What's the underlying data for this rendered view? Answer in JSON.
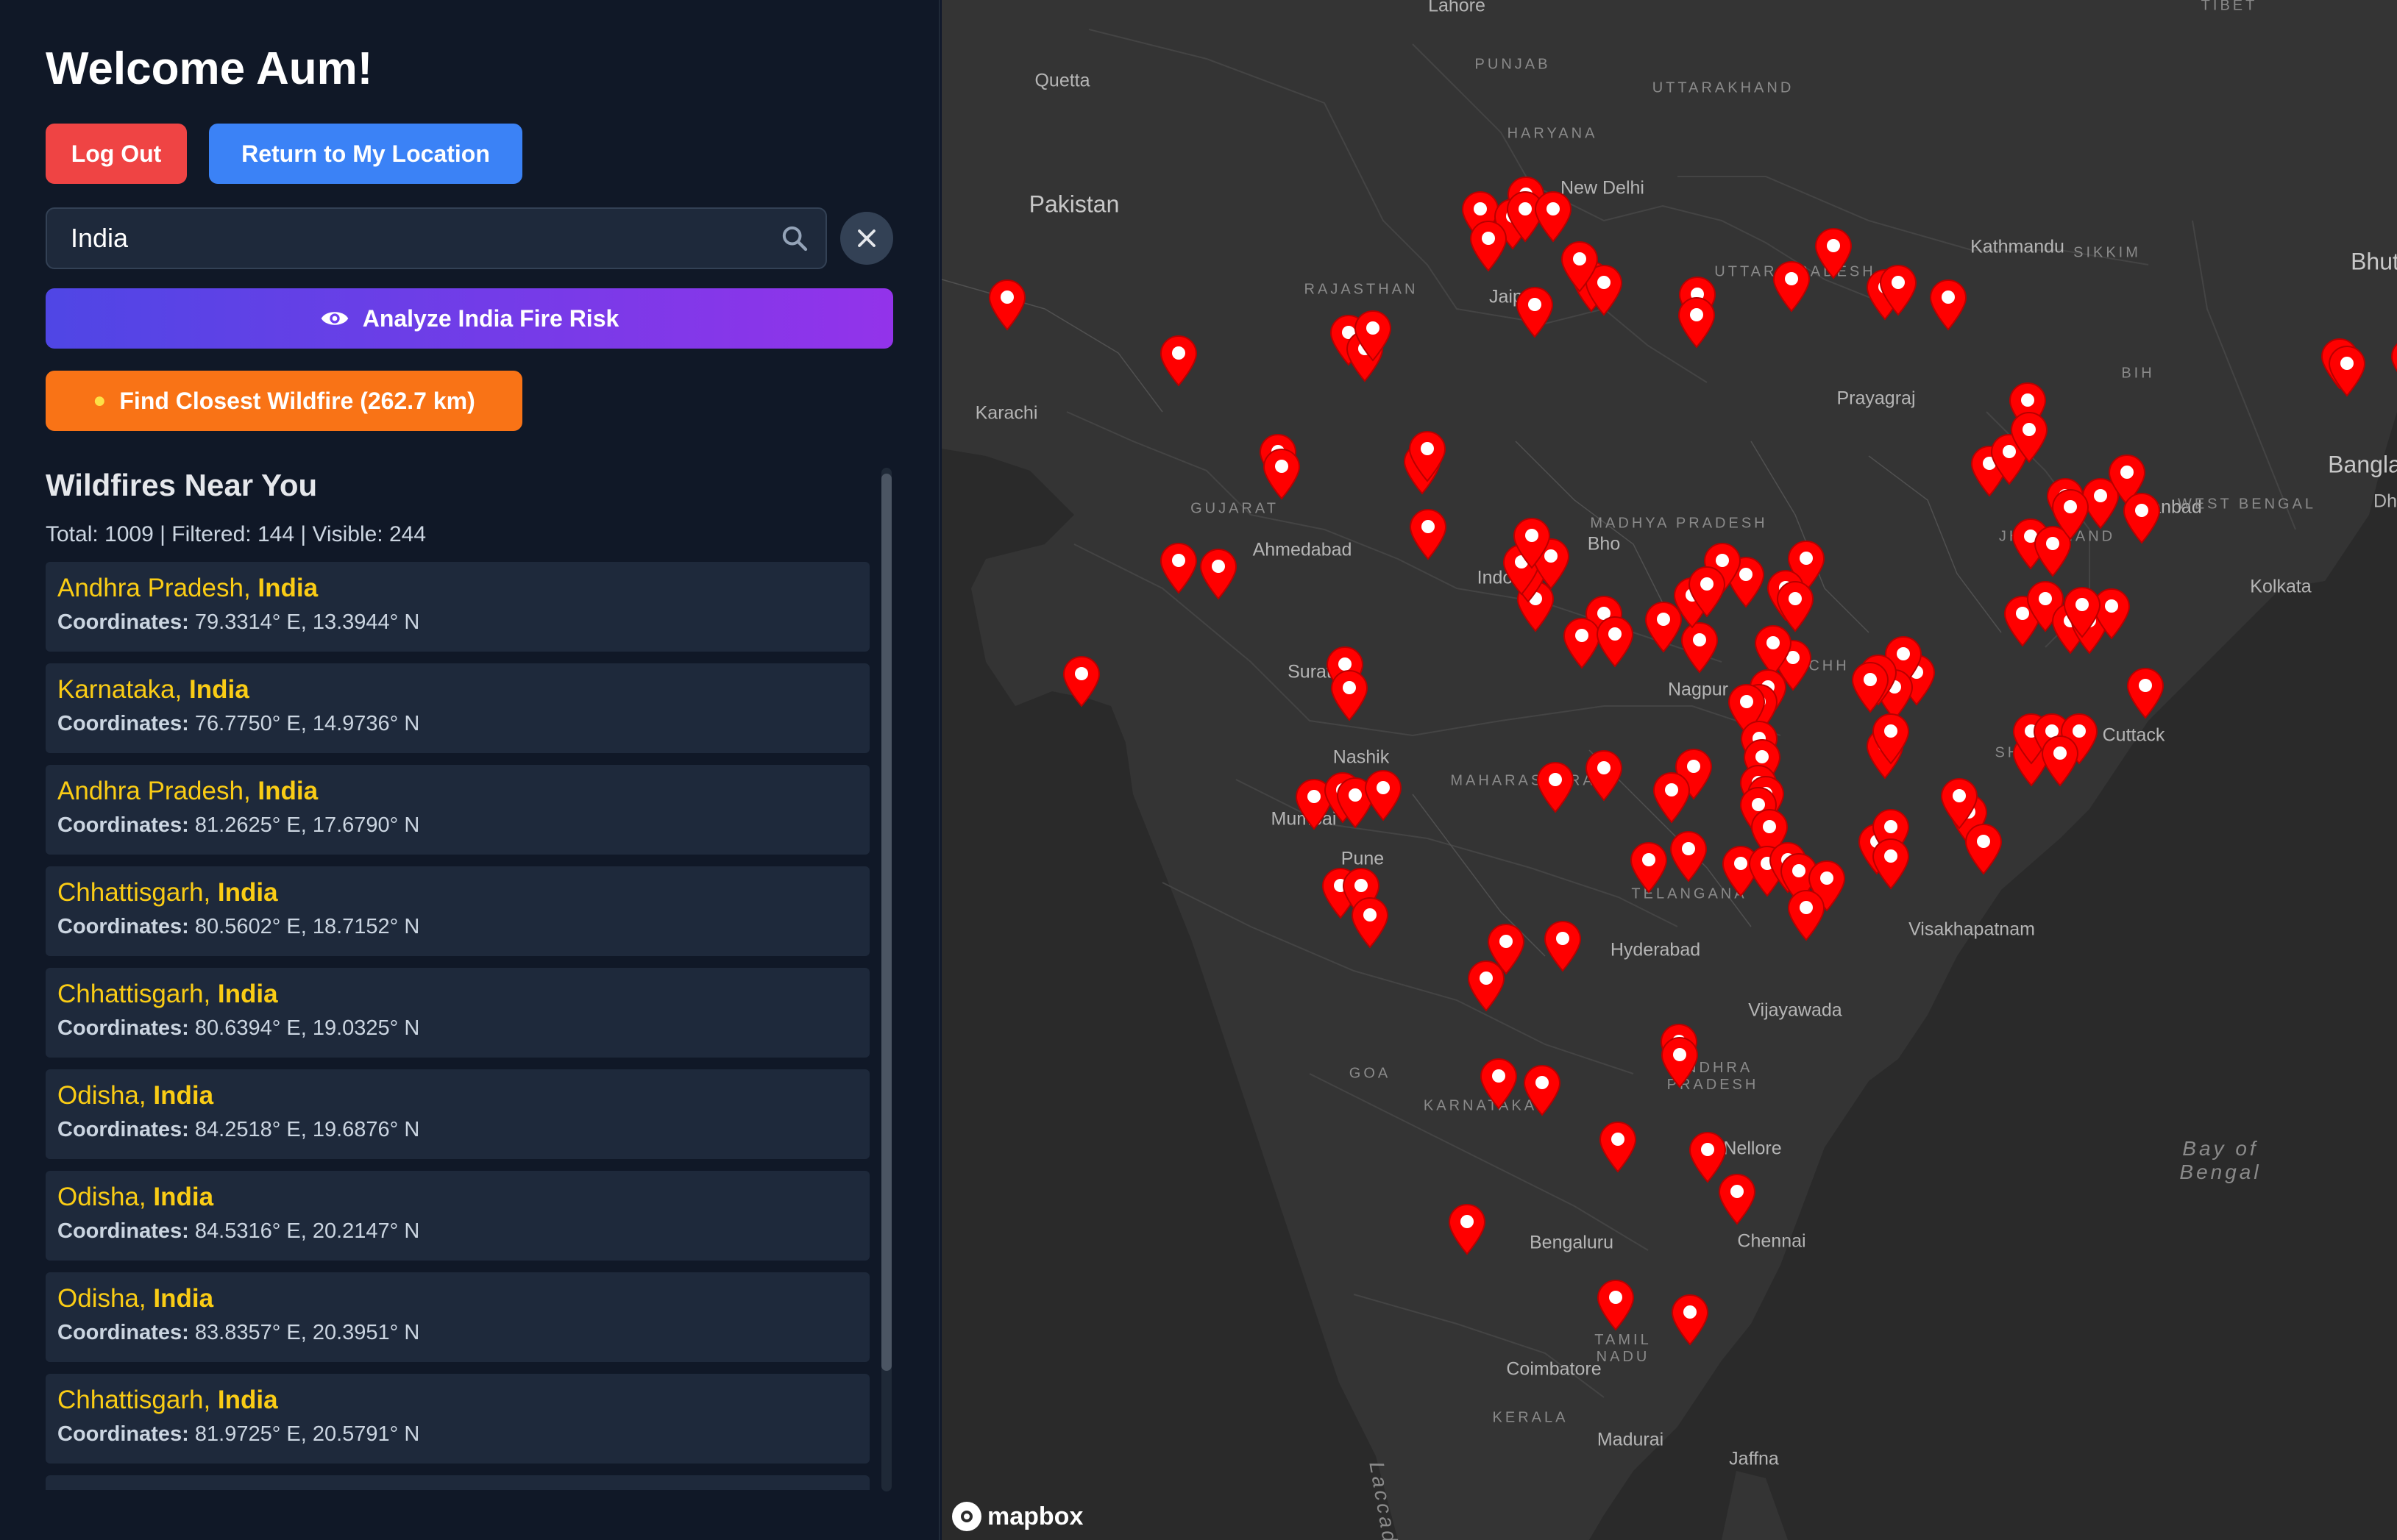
{
  "sidebar": {
    "welcome": "Welcome Aum!",
    "logout_label": "Log Out",
    "return_label": "Return to My Location",
    "search_value": "India",
    "analyze_label": "Analyze India Fire Risk",
    "closest_label": "Find Closest Wildfire (262.7 km)",
    "list_title": "Wildfires Near You",
    "stats": "Total: 1009 | Filtered: 144 | Visible: 244",
    "coords_label": "Coordinates:",
    "fires": [
      {
        "region": "Andhra Pradesh,",
        "country": "India",
        "coords": "79.3314° E, 13.3944° N"
      },
      {
        "region": "Karnataka,",
        "country": "India",
        "coords": "76.7750° E, 14.9736° N"
      },
      {
        "region": "Andhra Pradesh,",
        "country": "India",
        "coords": "81.2625° E, 17.6790° N"
      },
      {
        "region": "Chhattisgarh,",
        "country": "India",
        "coords": "80.5602° E, 18.7152° N"
      },
      {
        "region": "Chhattisgarh,",
        "country": "India",
        "coords": "80.6394° E, 19.0325° N"
      },
      {
        "region": "Odisha,",
        "country": "India",
        "coords": "84.2518° E, 19.6876° N"
      },
      {
        "region": "Odisha,",
        "country": "India",
        "coords": "84.5316° E, 20.2147° N"
      },
      {
        "region": "Odisha,",
        "country": "India",
        "coords": "83.8357° E, 20.3951° N"
      },
      {
        "region": "Chhattisgarh,",
        "country": "India",
        "coords": "81.9725° E, 20.5791° N"
      }
    ]
  },
  "map": {
    "attribution": "mapbox",
    "labels": {
      "lahore": "Lahore",
      "tibet": "TIBET",
      "quetta": "Quetta",
      "punjab": "PUNJAB",
      "uttarakhand": "UTTARAKHAND",
      "haryana": "HARYANA",
      "new_delhi": "New Delhi",
      "pakistan": "Pakistan",
      "kathmandu": "Kathmandu",
      "sikkim": "SIKKIM",
      "bhutan": "Bhut",
      "uttar_pradesh": "UTTAR PRADESH",
      "rajasthan": "RAJASTHAN",
      "jaipur": "Jaipur",
      "karachi": "Karachi",
      "prayagraj": "Prayagraj",
      "bihar": "BIH",
      "bangladesh": "Bangla",
      "dh": "Dh",
      "gujarat": "GUJARAT",
      "madhya_pradesh": "MADHYA PRADESH",
      "ahmedabad": "Ahmedabad",
      "indore": "Indo",
      "bhopal": "Bho",
      "dhanbad": "Dhanbad",
      "west_bengal": "WEST BENGAL",
      "jharkhand": "JHARKHAND",
      "kolkata": "Kolkata",
      "surat": "Surat",
      "nagpur": "Nagpur",
      "chhattisgarh": "CHH",
      "cuttack": "Cuttack",
      "nashik": "Nashik",
      "maharashtra": "MAHARASHTRA",
      "odisha": "SHA",
      "mumbai": "Mumbai",
      "pune": "Pune",
      "telangana": "TELANGANA",
      "visakhapatnam": "Visakhapatnam",
      "hyderabad": "Hyderabad",
      "vijayawada": "Vijayawada",
      "andhra_pradesh": "ANDHRA PRADESH",
      "goa": "GOA",
      "karnataka": "KARNATAKA",
      "nellore": "Nellore",
      "bay_of_bengal": "Bay of Bengal",
      "bengaluru": "Bengaluru",
      "chennai": "Chennai",
      "tamil_nadu": "TAMIL NADU",
      "coimbatore": "Coimbatore",
      "kerala": "KERALA",
      "madurai": "Madurai",
      "jaffna": "Jaffna",
      "laccadive": "Laccad"
    }
  },
  "colors": {
    "marker": "#ff0000",
    "logout": "#ef4444",
    "return": "#3b82f6",
    "closest": "#f97316",
    "location_text": "#facc15"
  }
}
